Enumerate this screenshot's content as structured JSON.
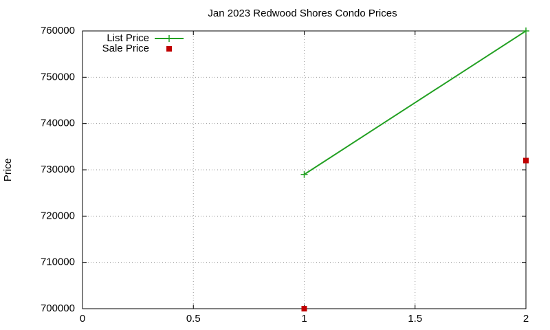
{
  "chart_data": {
    "type": "line",
    "title": "Jan 2023 Redwood Shores Condo Prices",
    "y_label": "Price",
    "x": [
      1,
      2
    ],
    "series": [
      {
        "name": "List Price",
        "color": "#22a022",
        "style": "linespoints",
        "values": [
          729000,
          760000
        ]
      },
      {
        "name": "Sale Price",
        "color": "#c00000",
        "style": "points",
        "values": [
          700000,
          732000
        ]
      }
    ],
    "xlim": [
      0,
      2
    ],
    "xticks": [
      0,
      0.5,
      1,
      1.5,
      2
    ],
    "ylim": [
      700000,
      760000
    ],
    "yticks": [
      700000,
      710000,
      720000,
      730000,
      740000,
      750000,
      760000
    ],
    "grid": true,
    "legend": "top-left"
  }
}
